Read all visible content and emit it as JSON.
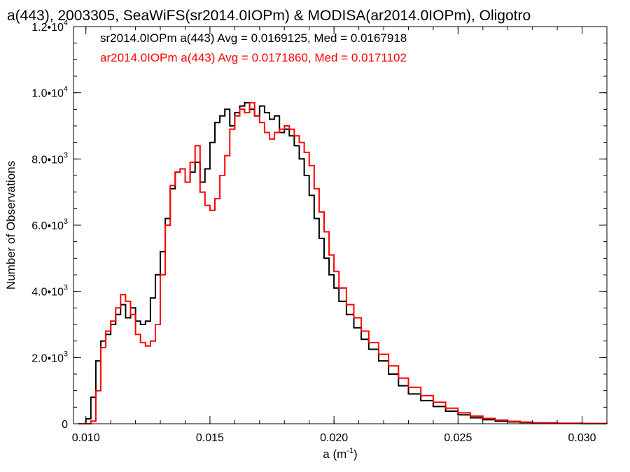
{
  "chart_data": {
    "type": "line",
    "title": "a(443), 2003305, SeaWiFS(sr2014.0IOPm) & MODISA(ar2014.0IOPm), Oligotro",
    "xlabel": "a (m",
    "xlabel_sup": "-1",
    "xlabel_close": ")",
    "ylabel": "Number of Observations",
    "xlim": [
      0.0095,
      0.031
    ],
    "ylim": [
      0,
      12000
    ],
    "x_ticks": [
      {
        "value": 0.01,
        "label": "0.010"
      },
      {
        "value": 0.015,
        "label": "0.015"
      },
      {
        "value": 0.02,
        "label": "0.020"
      },
      {
        "value": 0.025,
        "label": "0.025"
      },
      {
        "value": 0.03,
        "label": "0.030"
      }
    ],
    "y_ticks": [
      {
        "value": 0,
        "mant": "0",
        "exp": ""
      },
      {
        "value": 2000,
        "mant": "2.0•10",
        "exp": "3"
      },
      {
        "value": 4000,
        "mant": "4.0•10",
        "exp": "3"
      },
      {
        "value": 6000,
        "mant": "6.0•10",
        "exp": "3"
      },
      {
        "value": 8000,
        "mant": "8.0•10",
        "exp": "3"
      },
      {
        "value": 10000,
        "mant": "1.0•10",
        "exp": "4"
      },
      {
        "value": 12000,
        "mant": "1.2•10",
        "exp": "4"
      }
    ],
    "series": [
      {
        "name": "sr2014.0IOPm a(443) Avg = 0.0169125, Med = 0.0167918",
        "color": "#000000",
        "style": "steps",
        "x": [
          0.0097,
          0.01,
          0.0102,
          0.0104,
          0.0106,
          0.0108,
          0.011,
          0.0112,
          0.0114,
          0.0116,
          0.0118,
          0.012,
          0.0122,
          0.0124,
          0.0126,
          0.0128,
          0.013,
          0.0132,
          0.0134,
          0.0136,
          0.0138,
          0.014,
          0.0142,
          0.0144,
          0.0146,
          0.0148,
          0.015,
          0.0152,
          0.0154,
          0.0156,
          0.0158,
          0.016,
          0.0162,
          0.0164,
          0.0166,
          0.0168,
          0.017,
          0.0172,
          0.0174,
          0.0176,
          0.0178,
          0.018,
          0.0182,
          0.0184,
          0.0186,
          0.0188,
          0.019,
          0.0192,
          0.0194,
          0.0196,
          0.0198,
          0.02,
          0.0202,
          0.0205,
          0.0208,
          0.0211,
          0.0214,
          0.0218,
          0.0222,
          0.0226,
          0.023,
          0.0235,
          0.024,
          0.0245,
          0.025,
          0.0255,
          0.026,
          0.0265,
          0.027,
          0.0275,
          0.028,
          0.029,
          0.03,
          0.031
        ],
        "y": [
          0,
          150,
          800,
          1900,
          2500,
          2700,
          3000,
          3300,
          3600,
          3200,
          3500,
          3100,
          3000,
          3100,
          3800,
          4500,
          5200,
          6200,
          7100,
          7600,
          7700,
          7300,
          7600,
          7900,
          7300,
          7700,
          8500,
          9100,
          9300,
          9500,
          9000,
          9400,
          9600,
          9700,
          9500,
          9300,
          9600,
          9400,
          9200,
          9300,
          8800,
          8900,
          8700,
          8400,
          8000,
          7500,
          6900,
          6200,
          5600,
          5000,
          4500,
          4100,
          3700,
          3300,
          2900,
          2550,
          2250,
          1900,
          1500,
          1150,
          900,
          700,
          520,
          380,
          270,
          180,
          120,
          80,
          55,
          35,
          20,
          10,
          5,
          2
        ]
      },
      {
        "name": "ar2014.0IOPm a(443) Avg = 0.0171860, Med = 0.0171102",
        "color": "#ff0000",
        "style": "steps",
        "x": [
          0.0097,
          0.01,
          0.0102,
          0.0104,
          0.0106,
          0.0108,
          0.011,
          0.0112,
          0.0114,
          0.0116,
          0.0118,
          0.012,
          0.0122,
          0.0124,
          0.0126,
          0.0128,
          0.013,
          0.0132,
          0.0134,
          0.0136,
          0.0138,
          0.014,
          0.0142,
          0.0144,
          0.0146,
          0.0148,
          0.015,
          0.0152,
          0.0154,
          0.0156,
          0.0158,
          0.016,
          0.0162,
          0.0164,
          0.0166,
          0.0168,
          0.017,
          0.0172,
          0.0174,
          0.0176,
          0.0178,
          0.018,
          0.0182,
          0.0184,
          0.0186,
          0.0188,
          0.019,
          0.0192,
          0.0194,
          0.0196,
          0.0198,
          0.02,
          0.0202,
          0.0205,
          0.0208,
          0.0211,
          0.0214,
          0.0218,
          0.0222,
          0.0226,
          0.023,
          0.0235,
          0.024,
          0.0245,
          0.025,
          0.0255,
          0.026,
          0.0265,
          0.027,
          0.0275,
          0.028,
          0.029,
          0.03,
          0.031
        ],
        "y": [
          0,
          0,
          80,
          1000,
          2300,
          2800,
          3100,
          3500,
          3900,
          3700,
          3300,
          2700,
          2450,
          2350,
          2500,
          3000,
          4500,
          6000,
          7200,
          7600,
          7700,
          7300,
          7900,
          8400,
          7000,
          6600,
          6450,
          6800,
          7500,
          8100,
          8900,
          9300,
          9500,
          9400,
          9700,
          9300,
          9100,
          8800,
          8600,
          8800,
          8900,
          9000,
          8900,
          8700,
          8500,
          8200,
          7800,
          7100,
          6400,
          5800,
          5100,
          4600,
          4100,
          3600,
          3200,
          2800,
          2450,
          2100,
          1750,
          1380,
          1100,
          850,
          650,
          470,
          330,
          230,
          160,
          110,
          75,
          50,
          30,
          15,
          8,
          3
        ]
      }
    ],
    "legend_position": "top-left",
    "grid": false
  }
}
